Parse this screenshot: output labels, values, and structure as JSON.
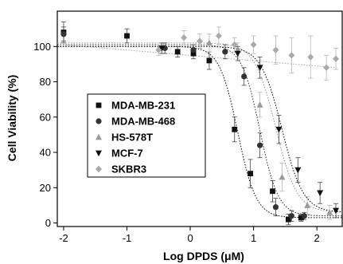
{
  "chart_data": {
    "type": "scatter",
    "xlabel": "Log DPDS (μM)",
    "ylabel": "Cell Viability (%)",
    "xlim": [
      -2.1,
      2.4
    ],
    "ylim": [
      -2,
      120
    ],
    "xticks": [
      -2,
      -1,
      0,
      1,
      2
    ],
    "yticks": [
      0,
      20,
      40,
      60,
      80,
      100
    ],
    "xtick_labels": [
      "-2",
      "-1",
      "0",
      "1",
      "2"
    ],
    "ytick_labels": [
      "0",
      "20",
      "40",
      "60",
      "80",
      "100"
    ],
    "legend_position": "lower-left",
    "grid": false,
    "series": [
      {
        "name": "MDA-MB-231",
        "marker": "square",
        "color": "#111111",
        "fit_line": "dotted",
        "fit": {
          "top": 100,
          "bottom": 3,
          "logIC50": 0.75,
          "hill": 3.0
        },
        "points": [
          {
            "x": -2,
            "y": 108,
            "err": 6
          },
          {
            "x": -1,
            "y": 106,
            "err": 4
          },
          {
            "x": -0.2,
            "y": 97,
            "err": 3
          },
          {
            "x": 0.05,
            "y": 96,
            "err": 3
          },
          {
            "x": 0.3,
            "y": 92,
            "err": 5
          },
          {
            "x": 0.7,
            "y": 53,
            "err": 7
          },
          {
            "x": 0.95,
            "y": 28,
            "err": 8
          },
          {
            "x": 1.3,
            "y": 18,
            "err": 6
          },
          {
            "x": 1.55,
            "y": 2,
            "err": 3
          },
          {
            "x": 1.75,
            "y": 3,
            "err": 2
          }
        ]
      },
      {
        "name": "MDA-MB-468",
        "marker": "circle",
        "color": "#333333",
        "fit_line": "dotted",
        "fit": {
          "top": 101,
          "bottom": 4,
          "logIC50": 1.1,
          "hill": 3.0
        },
        "points": [
          {
            "x": -2,
            "y": 107,
            "err": 4
          },
          {
            "x": -0.4,
            "y": 99,
            "err": 3
          },
          {
            "x": 0.05,
            "y": 98,
            "err": 3
          },
          {
            "x": 0.55,
            "y": 97,
            "err": 4
          },
          {
            "x": 0.85,
            "y": 83,
            "err": 5
          },
          {
            "x": 1.1,
            "y": 44,
            "err": 7
          },
          {
            "x": 1.35,
            "y": 9,
            "err": 5
          },
          {
            "x": 1.6,
            "y": 4,
            "err": 3
          },
          {
            "x": 1.8,
            "y": 4,
            "err": 2
          }
        ]
      },
      {
        "name": "HS-578T",
        "marker": "triangle-up",
        "color": "#9a9a9a",
        "fit_line": "dotted",
        "fit": {
          "top": 102,
          "bottom": 6,
          "logIC50": 1.35,
          "hill": 2.6
        },
        "points": [
          {
            "x": 0.3,
            "y": 102,
            "err": 5
          },
          {
            "x": 0.75,
            "y": 98,
            "err": 4
          },
          {
            "x": 1.1,
            "y": 67,
            "err": 7
          },
          {
            "x": 1.45,
            "y": 26,
            "err": 8
          },
          {
            "x": 1.85,
            "y": 10,
            "err": 5
          },
          {
            "x": 2.2,
            "y": 6,
            "err": 4
          }
        ]
      },
      {
        "name": "MCF-7",
        "marker": "triangle-down",
        "color": "#111111",
        "fit_line": "dotted",
        "fit": {
          "top": 100,
          "bottom": 6,
          "logIC50": 1.45,
          "hill": 2.6
        },
        "points": [
          {
            "x": -0.45,
            "y": 99,
            "err": 3
          },
          {
            "x": 0.75,
            "y": 96,
            "err": 4
          },
          {
            "x": 1.1,
            "y": 88,
            "err": 6
          },
          {
            "x": 1.4,
            "y": 53,
            "err": 8
          },
          {
            "x": 1.7,
            "y": 30,
            "err": 7
          },
          {
            "x": 2.05,
            "y": 17,
            "err": 6
          },
          {
            "x": 2.3,
            "y": 7,
            "err": 4
          }
        ]
      },
      {
        "name": "SKBR3",
        "marker": "diamond",
        "color": "#aaaaaa",
        "fit_line": "dotted",
        "fit": {
          "type": "linear",
          "from": [
            -2,
            101
          ],
          "to": [
            2.3,
            88
          ]
        },
        "points": [
          {
            "x": -0.5,
            "y": 98,
            "err": 3
          },
          {
            "x": -0.1,
            "y": 105,
            "err": 4
          },
          {
            "x": 0.15,
            "y": 103,
            "err": 4
          },
          {
            "x": 0.45,
            "y": 106,
            "err": 5
          },
          {
            "x": 0.7,
            "y": 101,
            "err": 4
          },
          {
            "x": 1.0,
            "y": 101,
            "err": 5
          },
          {
            "x": 1.35,
            "y": 98,
            "err": 8
          },
          {
            "x": 1.6,
            "y": 95,
            "err": 10
          },
          {
            "x": 1.9,
            "y": 94,
            "err": 12
          },
          {
            "x": 2.15,
            "y": 88,
            "err": 7
          },
          {
            "x": 2.3,
            "y": 93,
            "err": 6
          }
        ]
      }
    ]
  }
}
